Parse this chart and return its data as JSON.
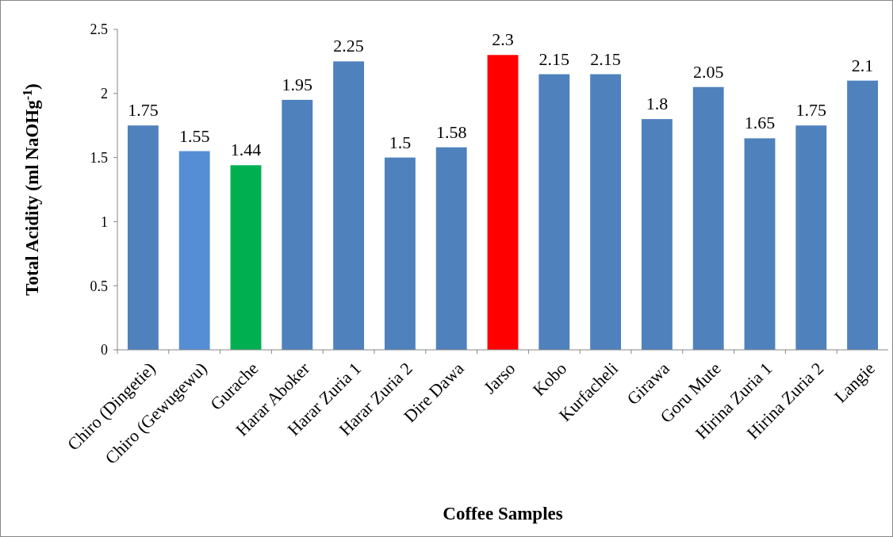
{
  "chart_data": {
    "type": "bar",
    "xlabel": "Coffee Samples",
    "ylabel": "Total Acidity (ml NaOHg$^{-1}$)",
    "categories": [
      "Chiro (Dingetie)",
      "Chiro (Gewugewu)",
      "Gurache",
      "Harar Aboker",
      "Harar Zuria 1",
      "Harar Zuria 2",
      "Dire Dawa",
      "Jarso",
      "Kobo",
      "Kurfacheli",
      "Girawa",
      "Goru Mute",
      "Hirina Zuria 1",
      "Hirina Zuria 2",
      "Langie"
    ],
    "values": [
      1.75,
      1.55,
      1.44,
      1.95,
      2.25,
      1.5,
      1.58,
      2.3,
      2.15,
      2.15,
      1.8,
      2.05,
      1.65,
      1.75,
      2.1
    ],
    "colors": [
      "#4f81bd",
      "#558ed5",
      "#00b050",
      "#4f81bd",
      "#4f81bd",
      "#4f81bd",
      "#4f81bd",
      "#ff0000",
      "#4f81bd",
      "#4f81bd",
      "#4f81bd",
      "#4f81bd",
      "#4f81bd",
      "#4f81bd",
      "#4f81bd"
    ],
    "ylim": [
      0,
      2.5
    ],
    "yticks": [
      0,
      0.5,
      1,
      1.5,
      2,
      2.5
    ],
    "data_labels": true,
    "grid": false
  }
}
